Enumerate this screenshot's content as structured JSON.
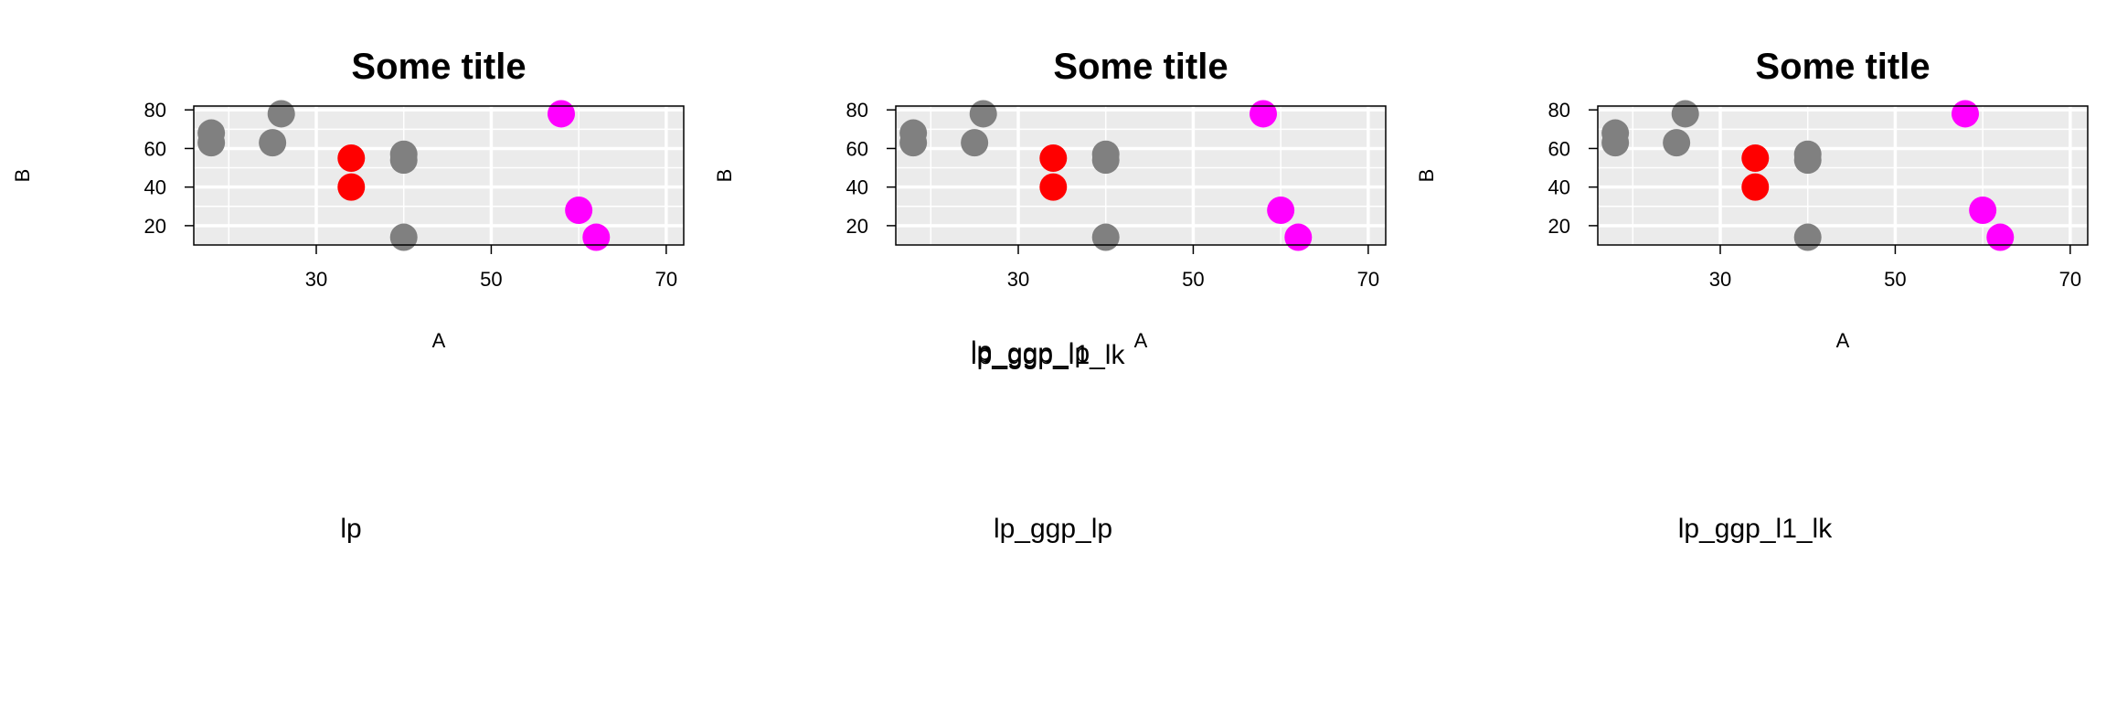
{
  "chart_data": [
    {
      "type": "scatter",
      "title": "Some title",
      "xlabel": "A",
      "ylabel": "B",
      "xlim": [
        16,
        72
      ],
      "ylim": [
        10,
        82
      ],
      "xticks": [
        30,
        50,
        70
      ],
      "yticks": [
        20,
        40,
        60,
        80
      ],
      "grid": true,
      "panel_background": "#ebebeb",
      "caption": "lp",
      "points": [
        {
          "x": 18,
          "y": 68,
          "color": "#808080"
        },
        {
          "x": 18,
          "y": 63,
          "color": "#808080"
        },
        {
          "x": 25,
          "y": 63,
          "color": "#808080"
        },
        {
          "x": 26,
          "y": 78,
          "color": "#808080"
        },
        {
          "x": 34,
          "y": 55,
          "color": "#ff0000"
        },
        {
          "x": 34,
          "y": 40,
          "color": "#ff0000"
        },
        {
          "x": 40,
          "y": 57,
          "color": "#808080"
        },
        {
          "x": 40,
          "y": 54,
          "color": "#808080"
        },
        {
          "x": 40,
          "y": 14,
          "color": "#808080"
        },
        {
          "x": 58,
          "y": 78,
          "color": "#ff00ff"
        },
        {
          "x": 60,
          "y": 28,
          "color": "#ff00ff"
        },
        {
          "x": 62,
          "y": 14,
          "color": "#ff00ff"
        }
      ]
    },
    {
      "type": "scatter",
      "title": "Some title",
      "xlabel": "A",
      "ylabel": "B",
      "xlim": [
        16,
        72
      ],
      "ylim": [
        10,
        82
      ],
      "xticks": [
        30,
        50,
        70
      ],
      "yticks": [
        20,
        40,
        60,
        80
      ],
      "grid": true,
      "panel_background": "#ebebeb",
      "caption": "lp_ggp_lp",
      "points": [
        {
          "x": 18,
          "y": 68,
          "color": "#808080"
        },
        {
          "x": 18,
          "y": 63,
          "color": "#808080"
        },
        {
          "x": 25,
          "y": 63,
          "color": "#808080"
        },
        {
          "x": 26,
          "y": 78,
          "color": "#808080"
        },
        {
          "x": 34,
          "y": 55,
          "color": "#ff0000"
        },
        {
          "x": 34,
          "y": 40,
          "color": "#ff0000"
        },
        {
          "x": 40,
          "y": 57,
          "color": "#808080"
        },
        {
          "x": 40,
          "y": 54,
          "color": "#808080"
        },
        {
          "x": 40,
          "y": 14,
          "color": "#808080"
        },
        {
          "x": 58,
          "y": 78,
          "color": "#ff00ff"
        },
        {
          "x": 60,
          "y": 28,
          "color": "#ff00ff"
        },
        {
          "x": 62,
          "y": 14,
          "color": "#ff00ff"
        }
      ]
    },
    {
      "type": "scatter",
      "title": "Some title",
      "xlabel": "A",
      "ylabel": "B",
      "xlim": [
        16,
        72
      ],
      "ylim": [
        10,
        82
      ],
      "xticks": [
        30,
        50,
        70
      ],
      "yticks": [
        20,
        40,
        60,
        80
      ],
      "grid": true,
      "panel_background": "#ebebeb",
      "caption": "lp_ggp_l1_lk",
      "points": [
        {
          "x": 18,
          "y": 68,
          "color": "#808080"
        },
        {
          "x": 18,
          "y": 63,
          "color": "#808080"
        },
        {
          "x": 25,
          "y": 63,
          "color": "#808080"
        },
        {
          "x": 26,
          "y": 78,
          "color": "#808080"
        },
        {
          "x": 34,
          "y": 55,
          "color": "#ff0000"
        },
        {
          "x": 34,
          "y": 40,
          "color": "#ff0000"
        },
        {
          "x": 40,
          "y": 57,
          "color": "#808080"
        },
        {
          "x": 40,
          "y": 54,
          "color": "#808080"
        },
        {
          "x": 40,
          "y": 14,
          "color": "#808080"
        },
        {
          "x": 58,
          "y": 78,
          "color": "#ff00ff"
        },
        {
          "x": 60,
          "y": 28,
          "color": "#ff00ff"
        },
        {
          "x": 62,
          "y": 14,
          "color": "#ff00ff"
        }
      ]
    }
  ],
  "overlap_labels": [
    "lp",
    "lp_ggp_lp",
    "lp_ggp_l1_lk"
  ]
}
